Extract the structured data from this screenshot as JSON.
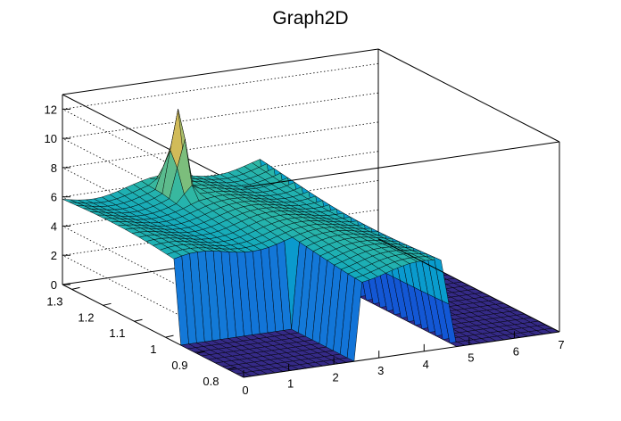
{
  "chart_data": {
    "type": "surface",
    "title": "Graph2D",
    "xlabel": "",
    "ylabel": "",
    "zlabel": "",
    "x_ticks": [
      "0",
      "1",
      "2",
      "3",
      "4",
      "5",
      "6",
      "7"
    ],
    "y_ticks": [
      "0.8",
      "0.9",
      "1",
      "1.1",
      "1.2",
      "1.3"
    ],
    "z_ticks": [
      "0",
      "2",
      "4",
      "6",
      "8",
      "10",
      "12"
    ],
    "xlim": [
      0,
      7
    ],
    "ylim": [
      0.75,
      1.33
    ],
    "zlim": [
      0,
      13
    ],
    "grid": true,
    "palette": [
      "#352a87",
      "#0f5cdd",
      "#1481d6",
      "#06a4ca",
      "#2eb7a4",
      "#87bf77",
      "#d1bb59",
      "#fec832",
      "#f9fb0e"
    ],
    "surface_features": [
      {
        "feature": "plateau",
        "x_range": [
          0,
          4.4
        ],
        "y_range": [
          0.75,
          1.33
        ],
        "z": 5.8
      },
      {
        "feature": "peak",
        "x": 2.05,
        "y": 1.26,
        "z": 12.6
      },
      {
        "feature": "drop",
        "x_range": [
          4.4,
          4.7
        ],
        "z_from": 5.5,
        "z_to": 0
      },
      {
        "feature": "valley",
        "x_range": [
          0,
          2.6
        ],
        "y_range": [
          0.75,
          0.96
        ],
        "z": 0
      }
    ]
  }
}
